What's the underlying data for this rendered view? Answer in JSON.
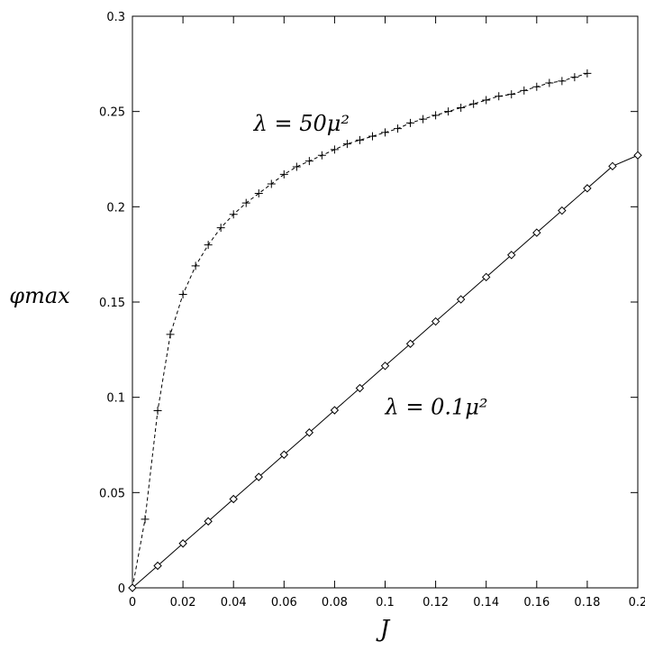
{
  "chart_data": {
    "type": "line",
    "title": "",
    "xlabel": "J",
    "ylabel": "φmax",
    "xlim": [
      0,
      0.2
    ],
    "ylim": [
      0,
      0.3
    ],
    "grid": false,
    "x_ticks": [
      "0",
      "0.02",
      "0.04",
      "0.06",
      "0.08",
      "0.1",
      "0.12",
      "0.14",
      "0.16",
      "0.18",
      "0.2"
    ],
    "y_ticks": [
      "0",
      "0.05",
      "0.1",
      "0.15",
      "0.2",
      "0.25",
      "0.3"
    ],
    "series": [
      {
        "name": "λ = 50μ²",
        "marker": "plus",
        "line_style": "dashed",
        "x": [
          0,
          0.005,
          0.01,
          0.015,
          0.02,
          0.025,
          0.03,
          0.035,
          0.04,
          0.045,
          0.05,
          0.055,
          0.06,
          0.065,
          0.07,
          0.075,
          0.08,
          0.085,
          0.09,
          0.095,
          0.1,
          0.105,
          0.11,
          0.115,
          0.12,
          0.125,
          0.13,
          0.135,
          0.14,
          0.145,
          0.15,
          0.155,
          0.16,
          0.165,
          0.17,
          0.175,
          0.18
        ],
        "y": [
          0,
          0.036,
          0.093,
          0.133,
          0.154,
          0.169,
          0.18,
          0.189,
          0.196,
          0.202,
          0.207,
          0.212,
          0.217,
          0.221,
          0.224,
          0.227,
          0.23,
          0.233,
          0.235,
          0.237,
          0.239,
          0.241,
          0.244,
          0.246,
          0.248,
          0.25,
          0.252,
          0.254,
          0.256,
          0.258,
          0.259,
          0.261,
          0.263,
          0.265,
          0.266,
          0.268,
          0.27
        ]
      },
      {
        "name": "λ = 0.1μ²",
        "marker": "diamond",
        "line_style": "solid",
        "x": [
          0,
          0.01,
          0.02,
          0.03,
          0.04,
          0.05,
          0.06,
          0.07,
          0.08,
          0.09,
          0.1,
          0.11,
          0.12,
          0.13,
          0.14,
          0.15,
          0.16,
          0.17,
          0.18,
          0.19,
          0.2
        ],
        "y": [
          0,
          0.0116,
          0.0233,
          0.0349,
          0.0466,
          0.0582,
          0.0699,
          0.0815,
          0.0932,
          0.1048,
          0.1165,
          0.1281,
          0.1398,
          0.1514,
          0.1631,
          0.1747,
          0.1864,
          0.198,
          0.2097,
          0.2213,
          0.227
        ]
      }
    ],
    "annotations": [
      {
        "text": "λ = 50μ²",
        "x": 0.048,
        "y": 0.24
      },
      {
        "text": "λ = 0.1μ²",
        "x": 0.1,
        "y": 0.091
      }
    ]
  }
}
